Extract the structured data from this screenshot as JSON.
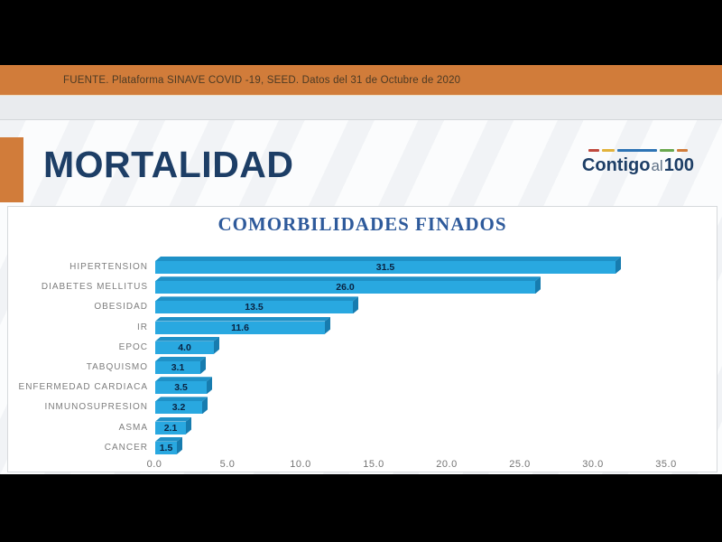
{
  "source_bar": {
    "text": "FUENTE. Plataforma SINAVE COVID -19, SEED. Datos del 31 de Octubre de 2020"
  },
  "header": {
    "title": "MORTALIDAD",
    "logo": {
      "word1": "Contigo",
      "word2": "al",
      "word3": "100",
      "line_colors": [
        "#c04a3e",
        "#e2b33c",
        "#2e74b5",
        "#6aa84f",
        "#d17c3a"
      ]
    }
  },
  "chart_data": {
    "type": "bar",
    "orientation": "horizontal",
    "title": "COMORBILIDADES FINADOS",
    "categories": [
      "HIPERTENSION",
      "DIABETES MELLITUS",
      "OBESIDAD",
      "IR",
      "EPOC",
      "TABQUISMO",
      "ENFERMEDAD CARDIACA",
      "INMUNOSUPRESION",
      "ASMA",
      "CANCER"
    ],
    "values": [
      31.5,
      26.0,
      13.5,
      11.6,
      4.0,
      3.1,
      3.5,
      3.2,
      2.1,
      1.5
    ],
    "value_labels": [
      "31.5",
      "26.0",
      "13.5",
      "11.6",
      "4.0",
      "3.1",
      "3.5",
      "3.2",
      "2.1",
      "1.5"
    ],
    "x_ticks": [
      "0.0",
      "5.0",
      "10.0",
      "15.0",
      "20.0",
      "25.0",
      "30.0",
      "35.0"
    ],
    "xlim": [
      0,
      35
    ],
    "grid": false,
    "legend": false
  },
  "colors": {
    "orange": "#d17c3a",
    "navy": "#1d3e66",
    "chart_title_blue": "#2e5a9b",
    "bar_front": "#29a8e0",
    "bar_top": "#1f91c7",
    "bar_side": "#177caf",
    "value_label": "#0a2240",
    "category_label": "#7d7d7d",
    "axis_label": "#747474"
  }
}
